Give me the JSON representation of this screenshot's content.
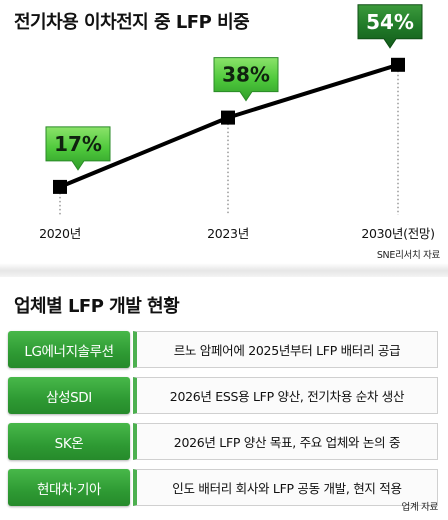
{
  "chart_data": {
    "type": "line",
    "title": "전기차용 이차전지 중 LFP 비중",
    "categories": [
      "2020년",
      "2023년",
      "2030년(전망)"
    ],
    "values": [
      17,
      38,
      54
    ],
    "data_labels": [
      "17%",
      "38%",
      "54%"
    ],
    "unit": "%",
    "grid": false,
    "source": "SNE리서치 자료",
    "colors": {
      "line": "#000000",
      "bubble_light": "#5fd14a",
      "bubble_dark": "#1f7a26"
    }
  },
  "table": {
    "title": "업체별 LFP 개발 현황",
    "rows": [
      {
        "company": "LG에너지솔루션",
        "detail": "르노 암페어에 2025년부터 LFP 배터리 공급"
      },
      {
        "company": "삼성SDI",
        "detail": "2026년 ESS용 LFP 양산, 전기차용 순차 생산"
      },
      {
        "company": "SK온",
        "detail": "2026년 LFP 양산 목표, 주요 업체와 논의 중"
      },
      {
        "company": "현대차·기아",
        "detail": "인도 배터리 회사와 LFP 공동 개발, 현지 적용"
      }
    ],
    "source": "업계 자료",
    "accent_color": "#2e9a33"
  }
}
